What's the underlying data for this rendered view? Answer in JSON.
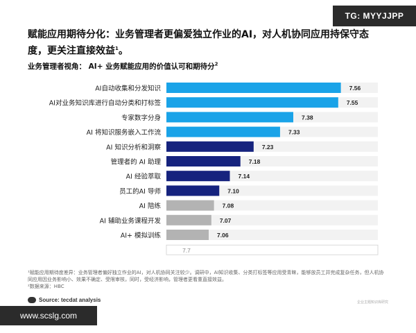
{
  "watermark_top": "TG: MYYJJPP",
  "title": "赋能应用期待分化：业务管理者更偏爱独立作业的AI，对人机协同应用持保守态度，更关注直接效益",
  "title_sup": "1",
  "subtitle": "业务管理者视角： AI+ 业务赋能应用的价值认可和期待分",
  "subtitle_sup": "2",
  "chart_data": {
    "type": "bar",
    "orientation": "horizontal",
    "categories": [
      "AI自动收集和分发知识",
      "AI对业务知识库进行自动分类和打标签",
      "专家数字分身",
      "AI 将知识服务嵌入工作流",
      "AI 知识分析和洞察",
      "管理者的 AI 助理",
      "AI 经验萃取",
      "员工的AI 导师",
      "AI 陪练",
      "AI 辅助业务课程开发",
      "AI+ 模拟训练"
    ],
    "values": [
      7.56,
      7.55,
      7.38,
      7.33,
      7.23,
      7.18,
      7.14,
      7.1,
      7.08,
      7.07,
      7.06
    ],
    "value_labels": [
      "7.56",
      "7.55",
      "7.38",
      "7.33",
      "7.23",
      "7.18",
      "7.14",
      "7.10",
      "7.08",
      "7.07",
      "7.06"
    ],
    "xlim": [
      6.9,
      7.7
    ],
    "axis_max_label": "7.7",
    "bar_colors": [
      "#1aa3e8",
      "#1aa3e8",
      "#1aa3e8",
      "#1aa3e8",
      "#16237e",
      "#16237e",
      "#16237e",
      "#16237e",
      "#b3b3b3",
      "#b3b3b3",
      "#b3b3b3"
    ],
    "track_color": "#f2f2f2"
  },
  "footnote1": "¹赋能应用期待度差异：业务管理者偏好独立作业的AI，对人机协同关注较少。调研中，AI知识收集、分类打标签等应用受青睐，能够放员工并完成复杂任务，但人机协同应用因业务影响小、效果不确定、受限审核，同时，受经济影响，管理者更看重直接效益。",
  "footnote2": "²数据来源：HBC",
  "source": "Source: tecdat analysis",
  "corner_mark": "企业主题知识库研究",
  "watermark_bottom": "www.scslg.com"
}
